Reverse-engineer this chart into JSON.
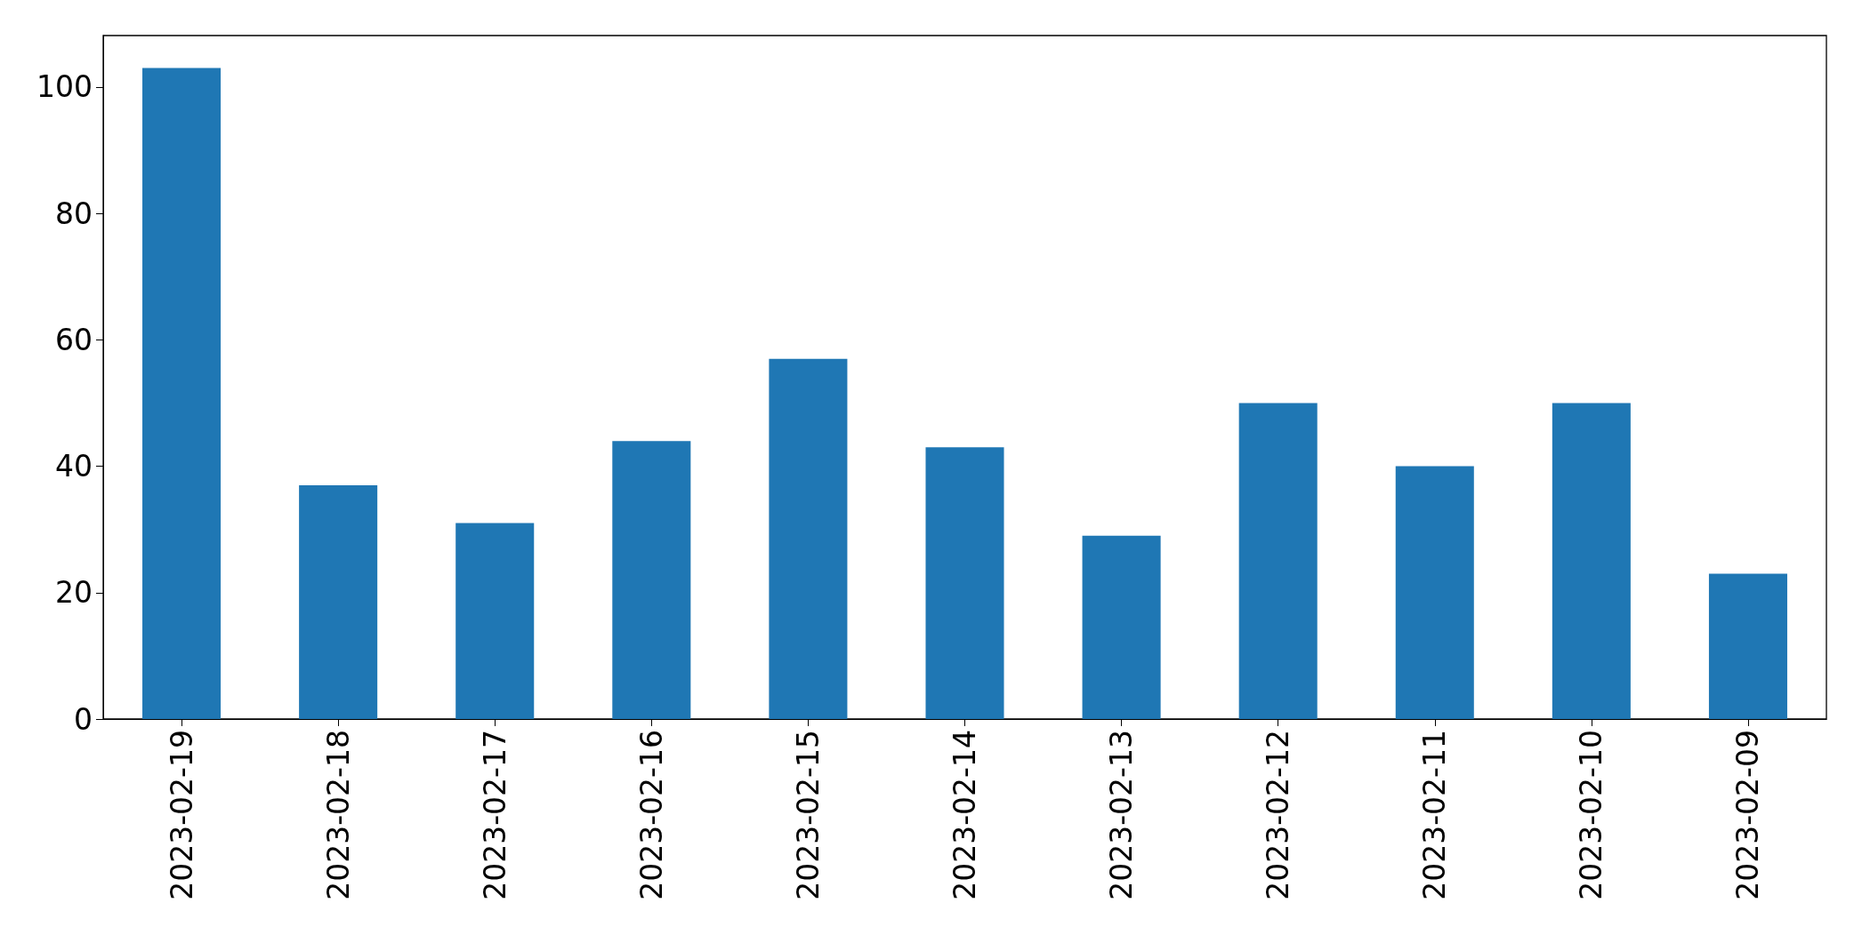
{
  "chart_data": {
    "type": "bar",
    "categories": [
      "2023-02-19",
      "2023-02-18",
      "2023-02-17",
      "2023-02-16",
      "2023-02-15",
      "2023-02-14",
      "2023-02-13",
      "2023-02-12",
      "2023-02-11",
      "2023-02-10",
      "2023-02-09"
    ],
    "values": [
      103,
      37,
      31,
      44,
      57,
      43,
      29,
      50,
      40,
      50,
      23
    ],
    "color": "#1f77b4",
    "ylim": [
      0,
      108.15
    ],
    "yticks": [
      0,
      20,
      40,
      60,
      80,
      100
    ],
    "grid": false
  }
}
